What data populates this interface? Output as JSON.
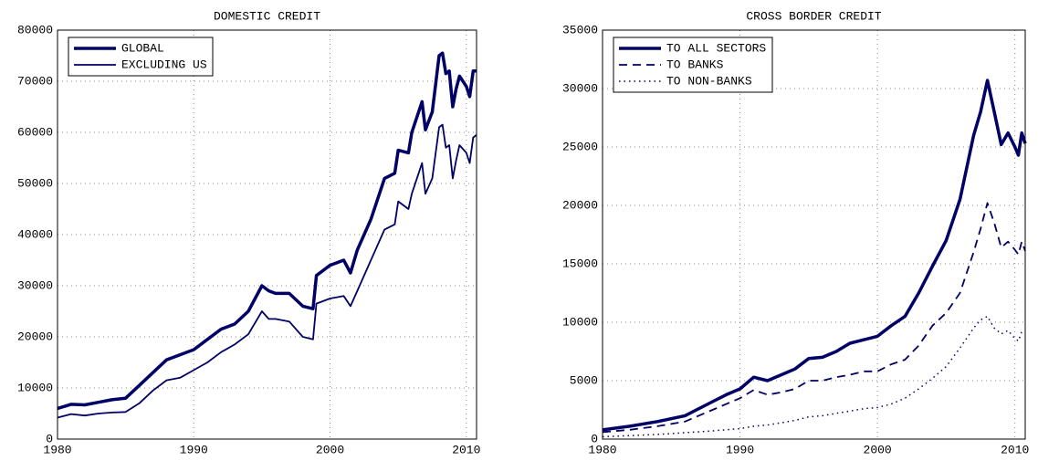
{
  "chart_data": [
    {
      "type": "line",
      "title": "DOMESTIC CREDIT",
      "x": [
        1980,
        1981,
        1982,
        1983,
        1984,
        1985,
        1986,
        1987,
        1988,
        1989,
        1990,
        1991,
        1992,
        1993,
        1994,
        1995,
        1995.5,
        1996,
        1997,
        1998,
        1998.75,
        1999,
        2000,
        2001,
        2001.5,
        2002,
        2003,
        2004,
        2004.75,
        2005,
        2005.75,
        2006,
        2006.75,
        2007,
        2007.5,
        2008,
        2008.25,
        2008.5,
        2008.75,
        2009,
        2009.25,
        2009.5,
        2010,
        2010.25,
        2010.5,
        2010.75
      ],
      "series": [
        {
          "name": "GLOBAL",
          "color": "#000066",
          "width": 3.5,
          "dash": "none",
          "values": [
            6000,
            6800,
            6700,
            7200,
            7700,
            8000,
            10500,
            13000,
            15500,
            16500,
            17500,
            19500,
            21500,
            22500,
            25000,
            30000,
            29000,
            28500,
            28500,
            26000,
            25500,
            32000,
            34000,
            35000,
            32500,
            37000,
            43000,
            51000,
            52000,
            56500,
            56000,
            60000,
            66000,
            60500,
            64000,
            75000,
            75500,
            71500,
            72000,
            65000,
            68500,
            71000,
            69000,
            67000,
            72000,
            72000
          ]
        },
        {
          "name": "EXCLUDING US",
          "color": "#000066",
          "width": 1.8,
          "dash": "none",
          "values": [
            4200,
            4900,
            4600,
            5000,
            5200,
            5300,
            7000,
            9500,
            11500,
            12000,
            13500,
            15000,
            17000,
            18500,
            20500,
            25000,
            23500,
            23500,
            23000,
            20000,
            19500,
            26500,
            27500,
            28000,
            26000,
            29000,
            35000,
            41000,
            42000,
            46500,
            45000,
            48000,
            54000,
            48000,
            51000,
            61000,
            61500,
            57000,
            57500,
            51000,
            54500,
            57500,
            56000,
            54000,
            59000,
            59500
          ]
        }
      ],
      "xlim": [
        1980,
        2010.75
      ],
      "xticks": [
        1980,
        1990,
        2000,
        2010
      ],
      "ylim": [
        0,
        80000
      ],
      "yticks": [
        0,
        10000,
        20000,
        30000,
        40000,
        50000,
        60000,
        70000,
        80000
      ],
      "grid": true,
      "legend": "upper left"
    },
    {
      "type": "line",
      "title": "CROSS BORDER CREDIT",
      "x": [
        1980,
        1982,
        1984,
        1986,
        1988,
        1989,
        1990,
        1991,
        1992,
        1993,
        1994,
        1995,
        1996,
        1997,
        1998,
        1999,
        2000,
        2001,
        2002,
        2003,
        2004,
        2005,
        2006,
        2007,
        2007.5,
        2008,
        2008.5,
        2009,
        2009.5,
        2010,
        2010.25,
        2010.5,
        2010.75
      ],
      "series": [
        {
          "name": "TO ALL SECTORS",
          "color": "#000066",
          "width": 3.5,
          "dash": "none",
          "values": [
            800,
            1100,
            1500,
            2000,
            3200,
            3800,
            4300,
            5300,
            5000,
            5500,
            6000,
            6900,
            7000,
            7500,
            8200,
            8500,
            8800,
            9700,
            10500,
            12500,
            14800,
            17000,
            20500,
            26000,
            28000,
            30700,
            28000,
            25200,
            26200,
            25000,
            24300,
            26200,
            25300
          ]
        },
        {
          "name": "TO BANKS",
          "color": "#000066",
          "width": 1.8,
          "dash": "9 6",
          "values": [
            600,
            800,
            1100,
            1500,
            2500,
            3000,
            3500,
            4200,
            3800,
            4000,
            4300,
            5000,
            5000,
            5300,
            5500,
            5800,
            5800,
            6400,
            6800,
            8000,
            9700,
            10800,
            12500,
            16000,
            18000,
            20200,
            18500,
            16400,
            16900,
            16200,
            15800,
            16900,
            16100
          ]
        },
        {
          "name": "TO NON-BANKS",
          "color": "#000066",
          "width": 1.5,
          "dash": "1.5 4",
          "values": [
            200,
            300,
            400,
            550,
            700,
            800,
            900,
            1100,
            1200,
            1400,
            1600,
            1900,
            2000,
            2200,
            2400,
            2600,
            2700,
            3000,
            3500,
            4300,
            5200,
            6200,
            7800,
            9500,
            10200,
            10500,
            9500,
            9000,
            9300,
            8600,
            8400,
            9200,
            9200
          ]
        }
      ],
      "xlim": [
        1980,
        2010.75
      ],
      "xticks": [
        1980,
        1990,
        2000,
        2010
      ],
      "ylim": [
        0,
        35000
      ],
      "yticks": [
        0,
        5000,
        10000,
        15000,
        20000,
        25000,
        30000,
        35000
      ],
      "grid": true,
      "legend": "upper left"
    }
  ]
}
